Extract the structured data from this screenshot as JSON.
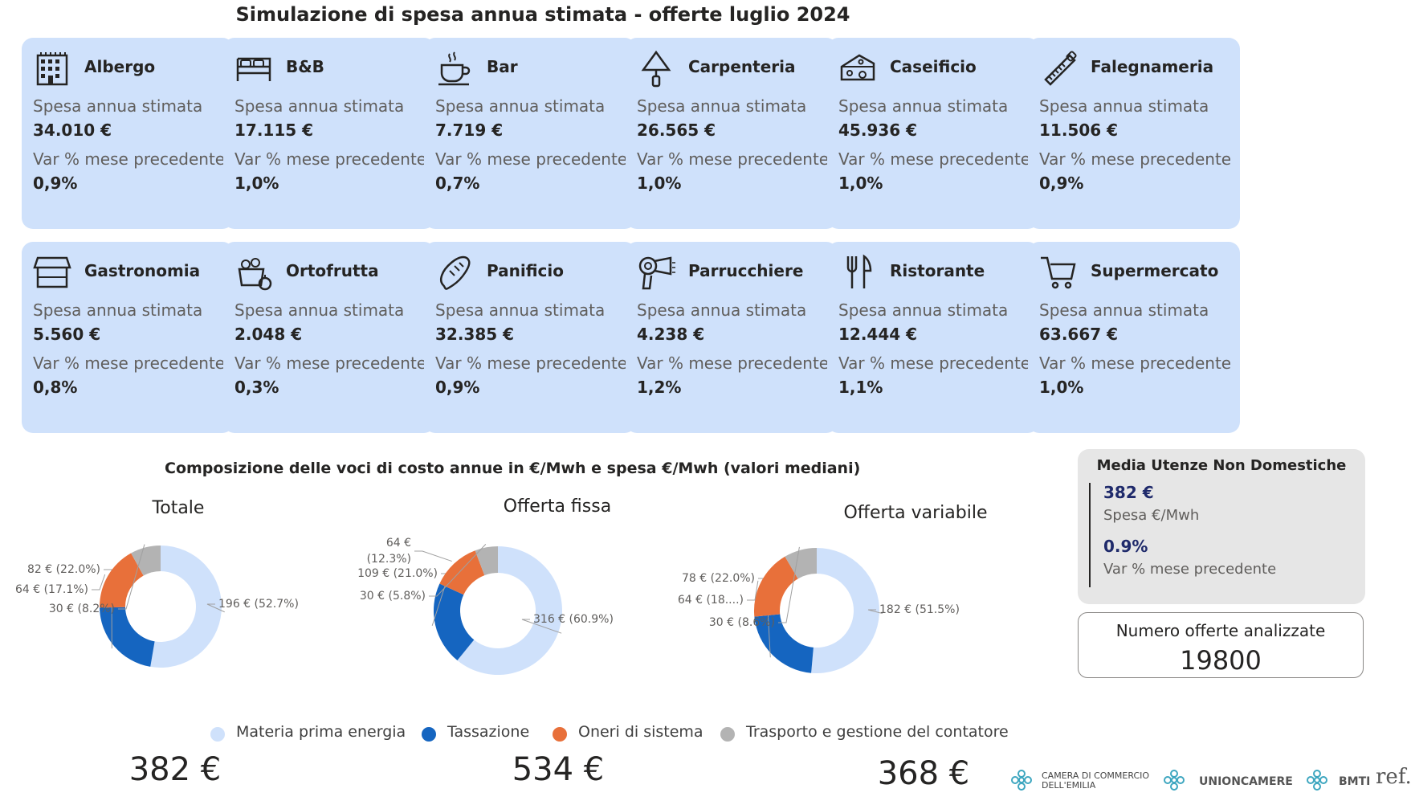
{
  "page": {
    "title": "Simulazione di spesa annua stimata - offerte luglio 2024"
  },
  "cards": [
    {
      "name": "Albergo",
      "icon": "hotel-building-icon",
      "spesa_label": "Spesa annua stimata",
      "spesa": "34.010 €",
      "var_label": "Var % mese precedente",
      "var": "0,9%"
    },
    {
      "name": "B&B",
      "icon": "bed-icon",
      "spesa_label": "Spesa annua stimata",
      "spesa": "17.115 €",
      "var_label": "Var % mese precedente",
      "var": "1,0%"
    },
    {
      "name": "Bar",
      "icon": "coffee-cup-icon",
      "spesa_label": "Spesa annua stimata",
      "spesa": "7.719 €",
      "var_label": "Var % mese precedente",
      "var": "0,7%"
    },
    {
      "name": "Carpenteria",
      "icon": "trowel-icon",
      "spesa_label": "Spesa annua stimata",
      "spesa": "26.565 €",
      "var_label": "Var % mese precedente",
      "var": "1,0%"
    },
    {
      "name": "Caseificio",
      "icon": "cheese-icon",
      "spesa_label": "Spesa annua stimata",
      "spesa": "45.936 €",
      "var_label": "Var % mese precedente",
      "var": "1,0%"
    },
    {
      "name": "Falegnameria",
      "icon": "saw-icon",
      "spesa_label": "Spesa annua stimata",
      "spesa": "11.506 €",
      "var_label": "Var % mese precedente",
      "var": "0,9%"
    },
    {
      "name": "Gastronomia",
      "icon": "shop-icon",
      "spesa_label": "Spesa annua stimata",
      "spesa": "5.560 €",
      "var_label": "Var % mese precedente",
      "var": "0,8%"
    },
    {
      "name": "Ortofrutta",
      "icon": "fruit-basket-icon",
      "spesa_label": "Spesa annua stimata",
      "spesa": "2.048 €",
      "var_label": "Var % mese precedente",
      "var": "0,3%"
    },
    {
      "name": "Panificio",
      "icon": "bread-icon",
      "spesa_label": "Spesa annua stimata",
      "spesa": "32.385 €",
      "var_label": "Var % mese precedente",
      "var": "0,9%"
    },
    {
      "name": "Parrucchiere",
      "icon": "hair-dryer-icon",
      "spesa_label": "Spesa annua stimata",
      "spesa": "4.238 €",
      "var_label": "Var % mese precedente",
      "var": "1,2%"
    },
    {
      "name": "Ristorante",
      "icon": "fork-knife-icon",
      "spesa_label": "Spesa annua stimata",
      "spesa": "12.444 €",
      "var_label": "Var % mese precedente",
      "var": "1,1%"
    },
    {
      "name": "Supermercato",
      "icon": "shopping-cart-icon",
      "spesa_label": "Spesa annua stimata",
      "spesa": "63.667 €",
      "var_label": "Var % mese precedente",
      "var": "1,0%"
    }
  ],
  "composition": {
    "title": "Composizione delle voci di costo annue in €/Mwh e spesa €/Mwh (valori mediani)",
    "legend": [
      {
        "label": "Materia prima energia",
        "color": "#cfe1fb"
      },
      {
        "label": "Tassazione",
        "color": "#1565c0"
      },
      {
        "label": "Oneri di sistema",
        "color": "#e8703a"
      },
      {
        "label": "Trasporto e gestione del contatore",
        "color": "#b3b3b3"
      }
    ],
    "totals": [
      "382 €",
      "534 €",
      "368 €"
    ]
  },
  "chart_data": [
    {
      "type": "pie",
      "title": "Totale",
      "categories": [
        "Materia prima energia",
        "Tassazione",
        "Oneri di sistema",
        "Trasporto e gestione del contatore"
      ],
      "values": [
        196,
        82,
        64,
        30
      ],
      "labels": [
        "196 € (52.7%)",
        "82 € (22.0%)",
        "64 € (17.1%)",
        "30 € (8.2%)"
      ],
      "total": "382 €"
    },
    {
      "type": "pie",
      "title": "Offerta fissa",
      "categories": [
        "Materia prima energia",
        "Tassazione",
        "Oneri di sistema",
        "Trasporto e gestione del contatore"
      ],
      "values": [
        316,
        109,
        64,
        30
      ],
      "labels": [
        "316 € (60.9%)",
        "109 € (21.0%)",
        "64 €|(12.3%)",
        "30 € (5.8%)"
      ],
      "total": "534 €"
    },
    {
      "type": "pie",
      "title": "Offerta variabile",
      "categories": [
        "Materia prima energia",
        "Tassazione",
        "Oneri di sistema",
        "Trasporto e gestione del contatore"
      ],
      "values": [
        182,
        78,
        64,
        30
      ],
      "labels": [
        "182 € (51.5%)",
        "78 € (22.0%)",
        "64 € (18....)",
        "30 € (8.6%)"
      ],
      "total": "368 €"
    }
  ],
  "kpi": {
    "title": "Media Utenze Non Domestiche",
    "spesa_value": "382 €",
    "spesa_label": "Spesa €/Mwh",
    "var_value": "0.9%",
    "var_label": "Var % mese precedente"
  },
  "count": {
    "label": "Numero offerte analizzate",
    "value": "19800"
  },
  "logos": {
    "camera_line1": "CAMERA DI COMMERCIO",
    "camera_line2": "DELL'EMILIA",
    "unioncamere": "UNIONCAMERE",
    "bmti": "BMTI",
    "ref": "ref."
  }
}
